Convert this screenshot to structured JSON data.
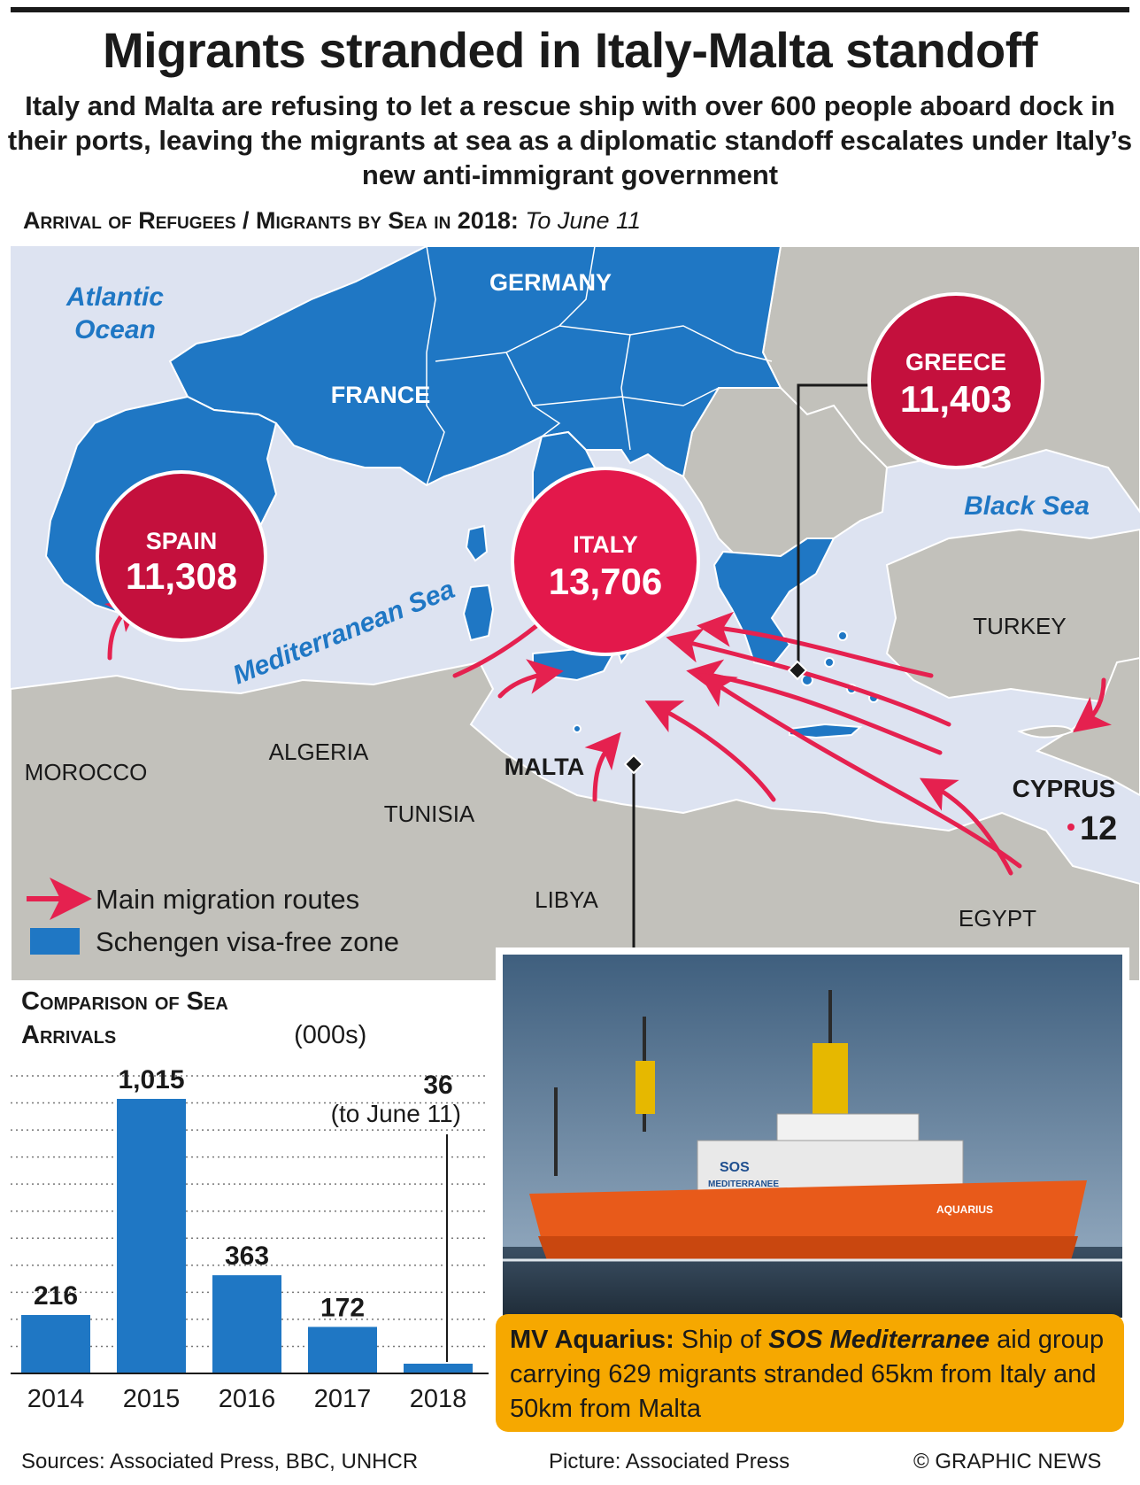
{
  "header": {
    "title": "Migrants stranded in Italy-Malta standoff",
    "subtitle": "Italy and Malta are refusing to let a rescue ship with over 600 people aboard dock in their ports, leaving the migrants at sea as a diplomatic standoff escalates under Italy’s new anti-immigrant government"
  },
  "map": {
    "heading": "Arrival of Refugees / Migrants by Sea in 2018:",
    "heading_note": "To June 11",
    "bubbles": [
      {
        "country": "SPAIN",
        "value": "11,308"
      },
      {
        "country": "ITALY",
        "value": "13,706"
      },
      {
        "country": "GREECE",
        "value": "11,403"
      }
    ],
    "cyprus": {
      "country": "CYPRUS",
      "value": "12"
    },
    "labels": {
      "atlantic_1": "Atlantic",
      "atlantic_2": "Ocean",
      "germany": "GERMANY",
      "france": "FRANCE",
      "black_sea": "Black Sea",
      "turkey": "TURKEY",
      "mediterranean": "Mediterranean Sea",
      "morocco": "MOROCCO",
      "algeria": "ALGERIA",
      "tunisia": "TUNISIA",
      "malta": "MALTA",
      "libya": "LIBYA",
      "egypt": "EGYPT"
    },
    "legend": {
      "routes": "Main migration routes",
      "schengen": "Schengen visa-free zone"
    },
    "colors": {
      "sea": "#dde3f1",
      "land": "#c2c1bb",
      "schengen": "#1f77c4",
      "route_arrow": "#e5214f",
      "bubble_dark": "#c4103d",
      "bubble_bright": "#e3184b"
    }
  },
  "chart_data": {
    "type": "bar",
    "title": "Comparison of Sea Arrivals",
    "unit": "(000s)",
    "categories": [
      "2014",
      "2015",
      "2016",
      "2017",
      "2018"
    ],
    "values": [
      216,
      1015,
      363,
      172,
      36
    ],
    "value_labels": [
      "216",
      "1,015",
      "363",
      "172",
      "36"
    ],
    "annotation": "(to June 11)",
    "ylim": [
      0,
      1100
    ],
    "grid": "dotted horizontal",
    "bar_color": "#1f77c4"
  },
  "photo_caption": {
    "title": "MV Aquarius:",
    "text_1": "Ship of",
    "italic": "SOS Mediterranee",
    "text_2": "aid group carrying 629 migrants stranded 65km from Italy and 50km from Malta"
  },
  "ship_labels": {
    "sos_1": "SOS",
    "sos_2": "MEDITERRANEE",
    "name": "AQUARIUS"
  },
  "footer": {
    "sources": "Sources: Associated Press, BBC, UNHCR",
    "picture": "Picture: Associated Press",
    "copyright": "© GRAPHIC NEWS"
  }
}
